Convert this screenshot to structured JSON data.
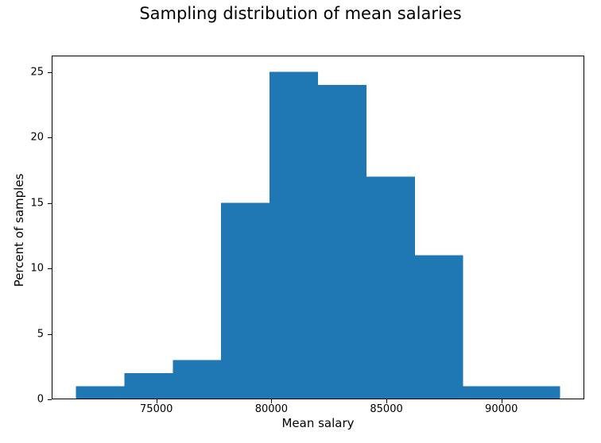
{
  "figure": {
    "background": "#ffffff"
  },
  "chart_data": {
    "type": "bar",
    "kind": "histogram",
    "title": "Sampling distribution of mean salaries",
    "xlabel": "Mean salary",
    "ylabel": "Percent of samples",
    "bin_edges": [
      71500,
      73605,
      75710,
      77815,
      79920,
      82025,
      84130,
      86235,
      88340,
      90445,
      92550
    ],
    "values": [
      1,
      2,
      3,
      15,
      25,
      24,
      17,
      11,
      1,
      1
    ],
    "xticks": {
      "values": [
        75000,
        80000,
        85000,
        90000
      ],
      "labels": [
        "75000",
        "80000",
        "85000",
        "90000"
      ]
    },
    "yticks": {
      "values": [
        0,
        5,
        10,
        15,
        20,
        25
      ],
      "labels": [
        "0",
        "5",
        "10",
        "15",
        "20",
        "25"
      ]
    },
    "xlim": [
      70448,
      93603
    ],
    "ylim": [
      0,
      26.25
    ],
    "bar_color": "#1f77b4",
    "axis_color": "#000000",
    "text_color": "#000000",
    "grid": false,
    "legend": null
  }
}
